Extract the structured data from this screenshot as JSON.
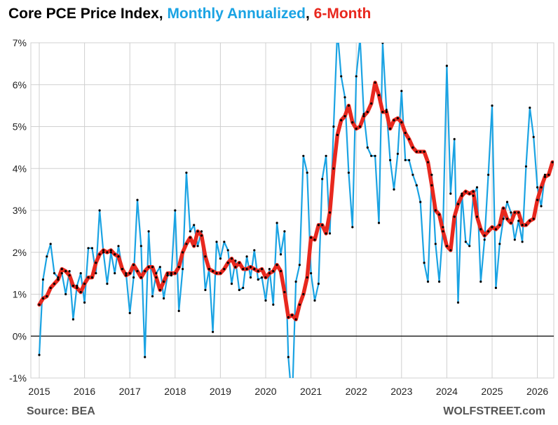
{
  "title": {
    "part1": "Core PCE Price Index,",
    "part2": "Monthly Annualized",
    "sep": ",",
    "part3": "6-Month"
  },
  "source": "Source: BEA",
  "credit": "WOLFSTREET.com",
  "colors": {
    "monthly": "#1aa3e3",
    "six_month": "#e8281e",
    "markers": "#000000",
    "grid": "#d0d0d0",
    "zero_line": "#000000"
  },
  "chart_data": {
    "type": "line",
    "title": "Core PCE Price Index, Monthly Annualized, 6-Month",
    "xlabel": "",
    "ylabel": "",
    "ylim": [
      -1,
      7
    ],
    "yticks": [
      "-1%",
      "0%",
      "1%",
      "2%",
      "3%",
      "4%",
      "5%",
      "6%",
      "7%"
    ],
    "xticks": [
      "2015",
      "2016",
      "2017",
      "2018",
      "2019",
      "2020",
      "2021",
      "2022",
      "2023",
      "2024",
      "2025",
      "2026"
    ],
    "grid": true,
    "x_start": "2015-01",
    "series": [
      {
        "name": "Monthly Annualized",
        "values": [
          -0.45,
          1.35,
          1.9,
          2.2,
          1.5,
          1.4,
          1.5,
          1.0,
          1.55,
          0.4,
          1.2,
          1.5,
          0.8,
          2.1,
          2.1,
          1.5,
          3.0,
          2.0,
          1.25,
          2.0,
          1.5,
          2.15,
          1.6,
          1.5,
          0.55,
          1.4,
          3.25,
          2.15,
          -0.5,
          2.5,
          0.95,
          1.5,
          1.65,
          0.9,
          1.45,
          1.45,
          3.0,
          0.6,
          1.6,
          3.9,
          2.5,
          2.65,
          2.15,
          2.5,
          1.1,
          1.6,
          0.1,
          2.25,
          1.85,
          2.25,
          2.05,
          1.25,
          1.8,
          1.1,
          1.15,
          1.9,
          1.4,
          2.05,
          1.35,
          1.4,
          0.85,
          1.6,
          0.75,
          2.7,
          1.95,
          2.5,
          -0.5,
          -1.6,
          1.3,
          1.7,
          4.3,
          3.9,
          1.5,
          0.85,
          1.25,
          3.75,
          4.3,
          2.45,
          5.0,
          7.3,
          6.2,
          5.7,
          3.9,
          2.6,
          6.2,
          7.1,
          5.3,
          4.5,
          4.3,
          4.3,
          2.7,
          7.0,
          5.4,
          4.2,
          3.5,
          4.35,
          5.85,
          4.2,
          4.2,
          3.85,
          3.6,
          3.2,
          1.75,
          1.3,
          3.85,
          2.2,
          1.3,
          2.6,
          6.45,
          3.4,
          4.7,
          0.8,
          3.4,
          2.25,
          2.15,
          3.35,
          3.55,
          1.3,
          2.3,
          3.85,
          5.5,
          1.15,
          2.2,
          2.8,
          3.2,
          2.95,
          2.3,
          2.75,
          2.25,
          4.05,
          5.45,
          4.75,
          3.55,
          3.1,
          3.85
        ]
      },
      {
        "name": "6-Month",
        "values": [
          0.75,
          0.9,
          0.95,
          1.15,
          1.25,
          1.35,
          1.6,
          1.55,
          1.45,
          1.2,
          1.15,
          1.05,
          1.25,
          1.4,
          1.4,
          1.75,
          1.95,
          2.05,
          2.0,
          2.05,
          1.95,
          1.9,
          1.6,
          1.45,
          1.5,
          1.7,
          1.55,
          1.4,
          1.55,
          1.65,
          1.65,
          1.4,
          1.1,
          1.3,
          1.5,
          1.5,
          1.5,
          1.65,
          2.0,
          2.2,
          2.35,
          2.15,
          2.5,
          2.4,
          1.9,
          1.6,
          1.55,
          1.5,
          1.5,
          1.6,
          1.75,
          1.85,
          1.65,
          1.75,
          1.6,
          1.6,
          1.65,
          1.6,
          1.55,
          1.6,
          1.4,
          1.5,
          1.55,
          1.7,
          1.55,
          1.05,
          0.45,
          0.5,
          0.4,
          0.75,
          1.0,
          1.4,
          2.35,
          2.3,
          2.65,
          2.65,
          2.45,
          2.95,
          4.0,
          4.8,
          5.15,
          5.25,
          5.5,
          5.1,
          4.95,
          5.0,
          5.25,
          5.35,
          5.55,
          6.05,
          5.75,
          5.35,
          5.35,
          4.95,
          5.15,
          5.2,
          5.1,
          4.85,
          4.7,
          4.5,
          4.4,
          4.4,
          4.4,
          4.15,
          3.6,
          3.0,
          2.9,
          2.5,
          2.15,
          2.05,
          2.85,
          3.15,
          3.35,
          3.45,
          3.4,
          3.45,
          2.85,
          2.55,
          2.4,
          2.5,
          2.6,
          2.55,
          2.65,
          3.05,
          2.8,
          2.7,
          2.95,
          2.95,
          2.65,
          2.65,
          2.75,
          2.8,
          3.25,
          3.55,
          3.8,
          3.85,
          4.15
        ]
      }
    ]
  }
}
